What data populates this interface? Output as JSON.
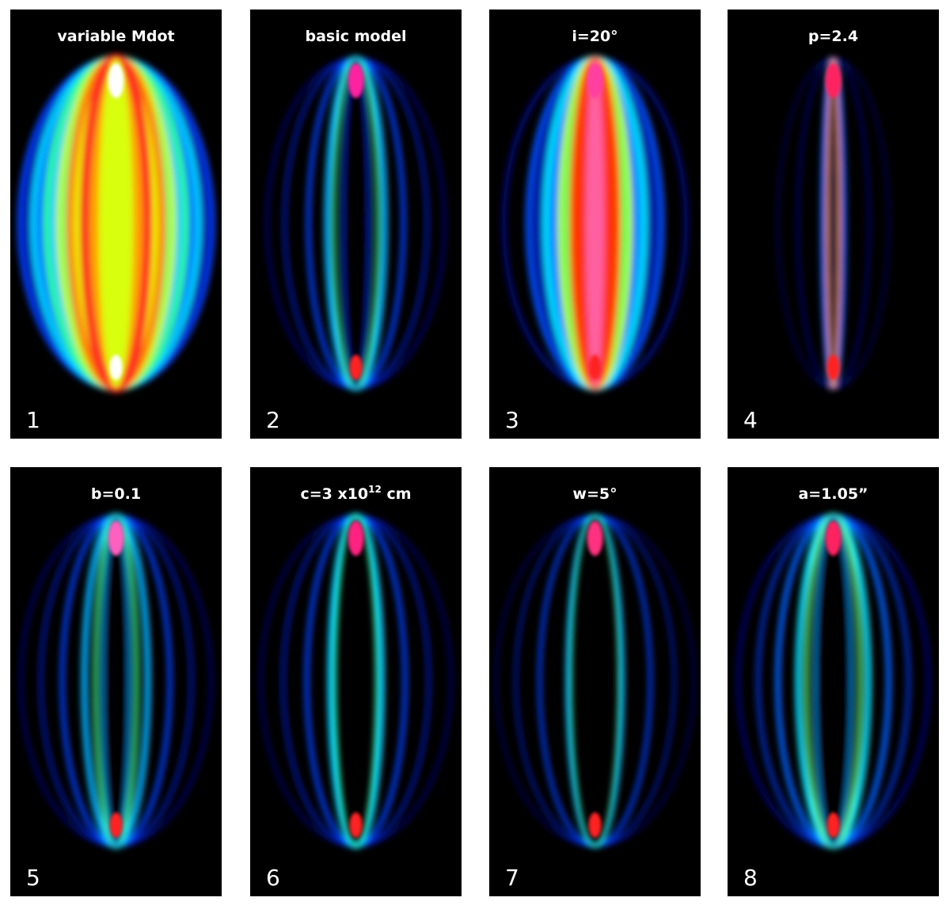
{
  "panels": [
    {
      "title": "variable Mdot",
      "number": "1"
    },
    {
      "title": "basic model",
      "number": "2"
    },
    {
      "title": "i=20°",
      "number": "3"
    },
    {
      "title": "p=2.4",
      "number": "4"
    },
    {
      "title": "b=0.1",
      "number": "5"
    },
    {
      "title": "c=3 x10",
      "title_superscript": "12",
      "title_suffix": " cm",
      "number": "6"
    },
    {
      "title": "w=5°",
      "number": "7"
    },
    {
      "title": "a=1.05”",
      "number": "8"
    }
  ]
}
